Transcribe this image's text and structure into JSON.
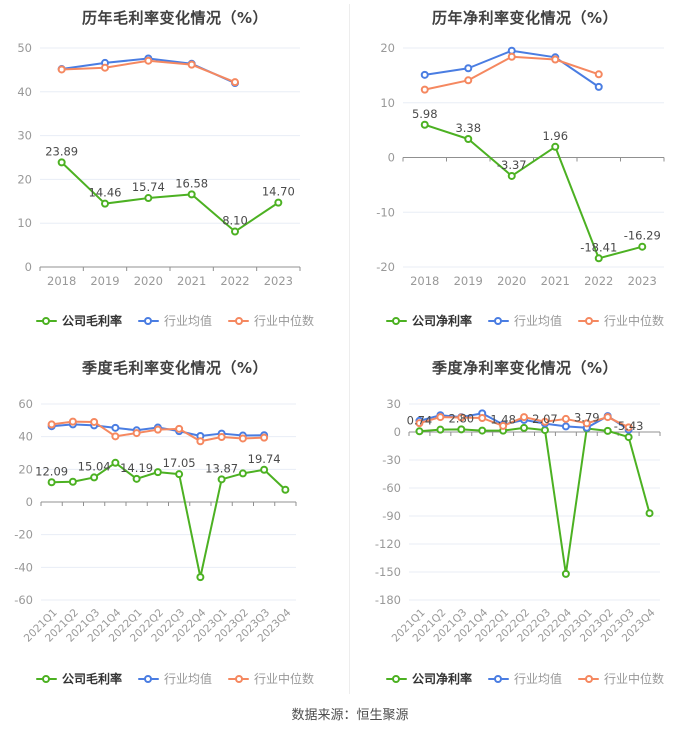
{
  "page": {
    "footer_note": "数据来源：恒生聚源"
  },
  "colors": {
    "company": "#4cb122",
    "industry_mean": "#4a7de2",
    "industry_median": "#f58860",
    "grid": "#e8edf6",
    "axis": "#909090",
    "tick_label": "#999999",
    "data_label": "#4a4a4a",
    "title": "#404040"
  },
  "chart_data": [
    {
      "id": "annual-gross-margin",
      "type": "line",
      "title": "历年毛利率变化情况（%）",
      "categories": [
        "2018",
        "2019",
        "2020",
        "2021",
        "2022",
        "2023"
      ],
      "ylim": [
        0,
        50
      ],
      "yticks": [
        0,
        10,
        20,
        30,
        40,
        50
      ],
      "grid": true,
      "legend_position": "bottom",
      "x_label_rotation": 0,
      "series": [
        {
          "key": "company",
          "name": "公司毛利率",
          "color": "#4cb122",
          "values": [
            23.89,
            14.46,
            15.74,
            16.58,
            8.1,
            14.7
          ],
          "point_labels": [
            "23.89",
            "14.46",
            "15.74",
            "16.58",
            "8.10",
            "14.70"
          ]
        },
        {
          "key": "industry_mean",
          "name": "行业均值",
          "color": "#4a7de2",
          "values": [
            45.2,
            46.6,
            47.6,
            46.4,
            42.0,
            null
          ]
        },
        {
          "key": "industry_median",
          "name": "行业中位数",
          "color": "#f58860",
          "values": [
            45.1,
            45.5,
            47.1,
            46.2,
            42.2,
            null
          ]
        }
      ]
    },
    {
      "id": "annual-net-margin",
      "type": "line",
      "title": "历年净利率变化情况（%）",
      "categories": [
        "2018",
        "2019",
        "2020",
        "2021",
        "2022",
        "2023"
      ],
      "ylim": [
        -20,
        20
      ],
      "yticks": [
        -20,
        -10,
        0,
        10,
        20
      ],
      "grid": true,
      "legend_position": "bottom",
      "x_label_rotation": 0,
      "series": [
        {
          "key": "company",
          "name": "公司净利率",
          "color": "#4cb122",
          "values": [
            5.98,
            3.38,
            -3.37,
            1.96,
            -18.41,
            -16.29
          ],
          "point_labels": [
            "5.98",
            "3.38",
            "-3.37",
            "1.96",
            "-18.41",
            "-16.29"
          ]
        },
        {
          "key": "industry_mean",
          "name": "行业均值",
          "color": "#4a7de2",
          "values": [
            15.1,
            16.3,
            19.5,
            18.3,
            12.9,
            null
          ]
        },
        {
          "key": "industry_median",
          "name": "行业中位数",
          "color": "#f58860",
          "values": [
            12.4,
            14.1,
            18.4,
            17.9,
            15.2,
            null
          ]
        }
      ]
    },
    {
      "id": "quarterly-gross-margin",
      "type": "line",
      "title": "季度毛利率变化情况（%）",
      "categories": [
        "2021Q1",
        "2021Q2",
        "2021Q3",
        "2021Q4",
        "2022Q1",
        "2022Q2",
        "2022Q3",
        "2022Q4",
        "2023Q1",
        "2023Q2",
        "2023Q3",
        "2023Q4"
      ],
      "ylim": [
        -60,
        60
      ],
      "yticks": [
        -60,
        -40,
        -20,
        0,
        20,
        40,
        60
      ],
      "grid": true,
      "legend_position": "bottom",
      "x_label_rotation": 45,
      "series": [
        {
          "key": "company",
          "name": "公司毛利率",
          "color": "#4cb122",
          "values": [
            12.09,
            12.4,
            15.04,
            24.0,
            14.19,
            18.3,
            17.05,
            -46.0,
            13.87,
            17.5,
            19.74,
            7.5
          ],
          "point_labels": [
            "12.09",
            null,
            "15.04",
            null,
            "14.19",
            null,
            "17.05",
            null,
            "13.87",
            null,
            "19.74",
            null
          ]
        },
        {
          "key": "industry_mean",
          "name": "行业均值",
          "color": "#4a7de2",
          "values": [
            46.4,
            47.5,
            46.9,
            45.4,
            43.9,
            45.6,
            43.4,
            40.4,
            41.9,
            40.7,
            40.9,
            null
          ]
        },
        {
          "key": "industry_median",
          "name": "行业中位数",
          "color": "#f58860",
          "values": [
            47.5,
            49.2,
            49.0,
            40.2,
            42.2,
            44.3,
            44.8,
            37.2,
            39.8,
            38.9,
            39.4,
            null
          ]
        }
      ]
    },
    {
      "id": "quarterly-net-margin",
      "type": "line",
      "title": "季度净利率变化情况（%）",
      "categories": [
        "2021Q1",
        "2021Q2",
        "2021Q3",
        "2021Q4",
        "2022Q1",
        "2022Q2",
        "2022Q3",
        "2022Q4",
        "2023Q1",
        "2023Q2",
        "2023Q3",
        "2023Q4"
      ],
      "ylim": [
        -180,
        30
      ],
      "yticks": [
        -180,
        -150,
        -120,
        -90,
        -60,
        -30,
        0,
        30
      ],
      "grid": true,
      "legend_position": "bottom",
      "x_label_rotation": 45,
      "series": [
        {
          "key": "company",
          "name": "公司净利率",
          "color": "#4cb122",
          "values": [
            0.74,
            2.5,
            2.8,
            1.5,
            1.48,
            4.4,
            2.07,
            -152.0,
            3.79,
            1.2,
            -5.43,
            -87.0
          ],
          "point_labels": [
            "0.74",
            null,
            "2.80",
            null,
            "1.48",
            null,
            "2.07",
            null,
            "3.79",
            null,
            "-5.43",
            null
          ]
        },
        {
          "key": "industry_mean",
          "name": "行业均值",
          "color": "#4a7de2",
          "values": [
            12.0,
            18.0,
            16.0,
            20.0,
            8.0,
            13.0,
            9.0,
            6.0,
            4.5,
            17.0,
            2.5,
            null
          ]
        },
        {
          "key": "industry_median",
          "name": "行业中位数",
          "color": "#f58860",
          "values": [
            9.5,
            16.0,
            15.5,
            15.0,
            6.5,
            16.0,
            11.0,
            14.0,
            9.3,
            16.0,
            5.0,
            null
          ]
        }
      ]
    }
  ]
}
